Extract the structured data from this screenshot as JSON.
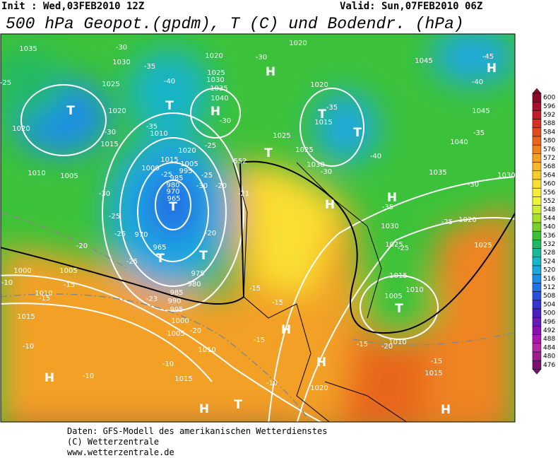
{
  "header": {
    "init": "Init : Wed,03FEB2010 12Z",
    "valid": "Valid: Sun,07FEB2010 06Z",
    "title": "500 hPa Geopot.(gpdm), T (C) und Bodendr. (hPa)"
  },
  "colorbar": {
    "ticks": [
      600,
      596,
      592,
      588,
      584,
      580,
      576,
      572,
      568,
      564,
      560,
      556,
      552,
      548,
      544,
      540,
      536,
      532,
      528,
      524,
      520,
      516,
      512,
      508,
      504,
      500,
      496,
      492,
      488,
      484,
      480,
      476
    ],
    "colors": [
      "#8b0a2a",
      "#a8102e",
      "#c41c2c",
      "#d6321f",
      "#e04c1c",
      "#e8661c",
      "#ee8420",
      "#f2a026",
      "#f6b82a",
      "#f8cc2e",
      "#fadf30",
      "#f8ef34",
      "#eef63a",
      "#cfee2c",
      "#a8e22a",
      "#74d22a",
      "#3cc23a",
      "#20b866",
      "#18b89a",
      "#18b4c8",
      "#1aa8e0",
      "#1c8ee6",
      "#2070e6",
      "#2850d8",
      "#3436c8",
      "#4a20c0",
      "#6a18b8",
      "#8a10b0",
      "#a818b0",
      "#b428a8",
      "#9c1c8c",
      "#7a1070"
    ]
  },
  "map": {
    "labels": [
      "T",
      "T",
      "H",
      "H",
      "T",
      "T",
      "T",
      "H",
      "T",
      "T",
      "T",
      "H",
      "H",
      "H",
      "H",
      "T",
      "T",
      "H",
      "H",
      "H",
      "1035",
      "1030",
      "1025",
      "1020",
      "1020",
      "1015",
      "1010",
      "1010",
      "1005",
      "1000",
      "1020",
      "1015",
      "1005",
      "995",
      "985",
      "980",
      "970",
      "965",
      "970",
      "965",
      "975",
      "980",
      "985",
      "990",
      "995",
      "1000",
      "1005",
      "1010",
      "1015",
      "1020",
      "1000",
      "1005",
      "1010",
      "1015",
      "1025",
      "1030",
      "1035",
      "1040",
      "1020",
      "1020",
      "1020",
      "1025",
      "1025",
      "1030",
      "1015",
      "1035",
      "1045",
      "1045",
      "1040",
      "1030",
      "1025",
      "1020",
      "1025",
      "1015",
      "1005",
      "1010",
      "1010",
      "1015",
      "1030",
      "-30",
      "-35",
      "-40",
      "-30",
      "-35",
      "-25",
      "-30",
      "-25",
      "-20",
      "-25",
      "-30",
      "-30",
      "-35",
      "-40",
      "-30",
      "-35",
      "-25",
      "-25",
      "-30",
      "-35",
      "-40",
      "-45",
      "-30",
      "-25",
      "-25",
      "-25",
      "-20",
      "-20",
      "-21",
      "-15",
      "-15",
      "-15",
      "-15",
      "-15",
      "-15",
      "-20",
      "-10",
      "-10",
      "-10",
      "-10",
      "-20",
      "-23",
      "-15",
      "-10",
      "-25",
      "552"
    ]
  },
  "footer": {
    "lines": [
      "Daten: GFS-Modell des amerikanischen Wetterdienstes",
      "(C) Wetterzentrale",
      "www.wetterzentrale.de"
    ]
  }
}
